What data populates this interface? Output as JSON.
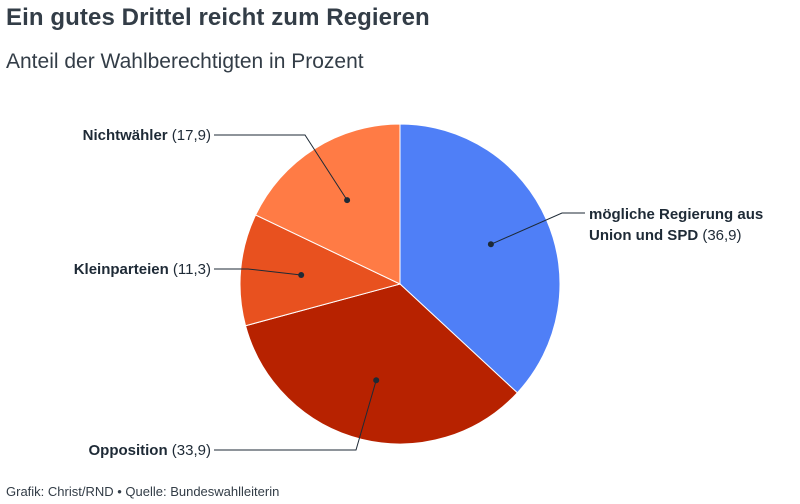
{
  "title": "Ein gutes Drittel reicht zum Regieren",
  "subtitle": "Anteil der Wahlberechtigten in Prozent",
  "footer": "Grafik: Christ/RND • Quelle: Bundeswahlleiterin",
  "chart_data": {
    "type": "pie",
    "start": "12 o'clock, clockwise",
    "slices": [
      {
        "label": "mögliche Regierung aus Union und SPD",
        "label_lines": [
          "mögliche Regierung aus",
          "Union und SPD"
        ],
        "value": 36.9,
        "value_label": "(36,9)",
        "color": "#4f7ff7"
      },
      {
        "label": "Opposition",
        "label_lines": [
          "Opposition"
        ],
        "value": 33.9,
        "value_label": "(33,9)",
        "color": "#b72200"
      },
      {
        "label": "Kleinparteien",
        "label_lines": [
          "Kleinparteien"
        ],
        "value": 11.3,
        "value_label": "(11,3)",
        "color": "#e8511f"
      },
      {
        "label": "Nichtwähler",
        "label_lines": [
          "Nichtwähler"
        ],
        "value": 17.9,
        "value_label": "(17,9)",
        "color": "#ff7b45"
      }
    ]
  }
}
